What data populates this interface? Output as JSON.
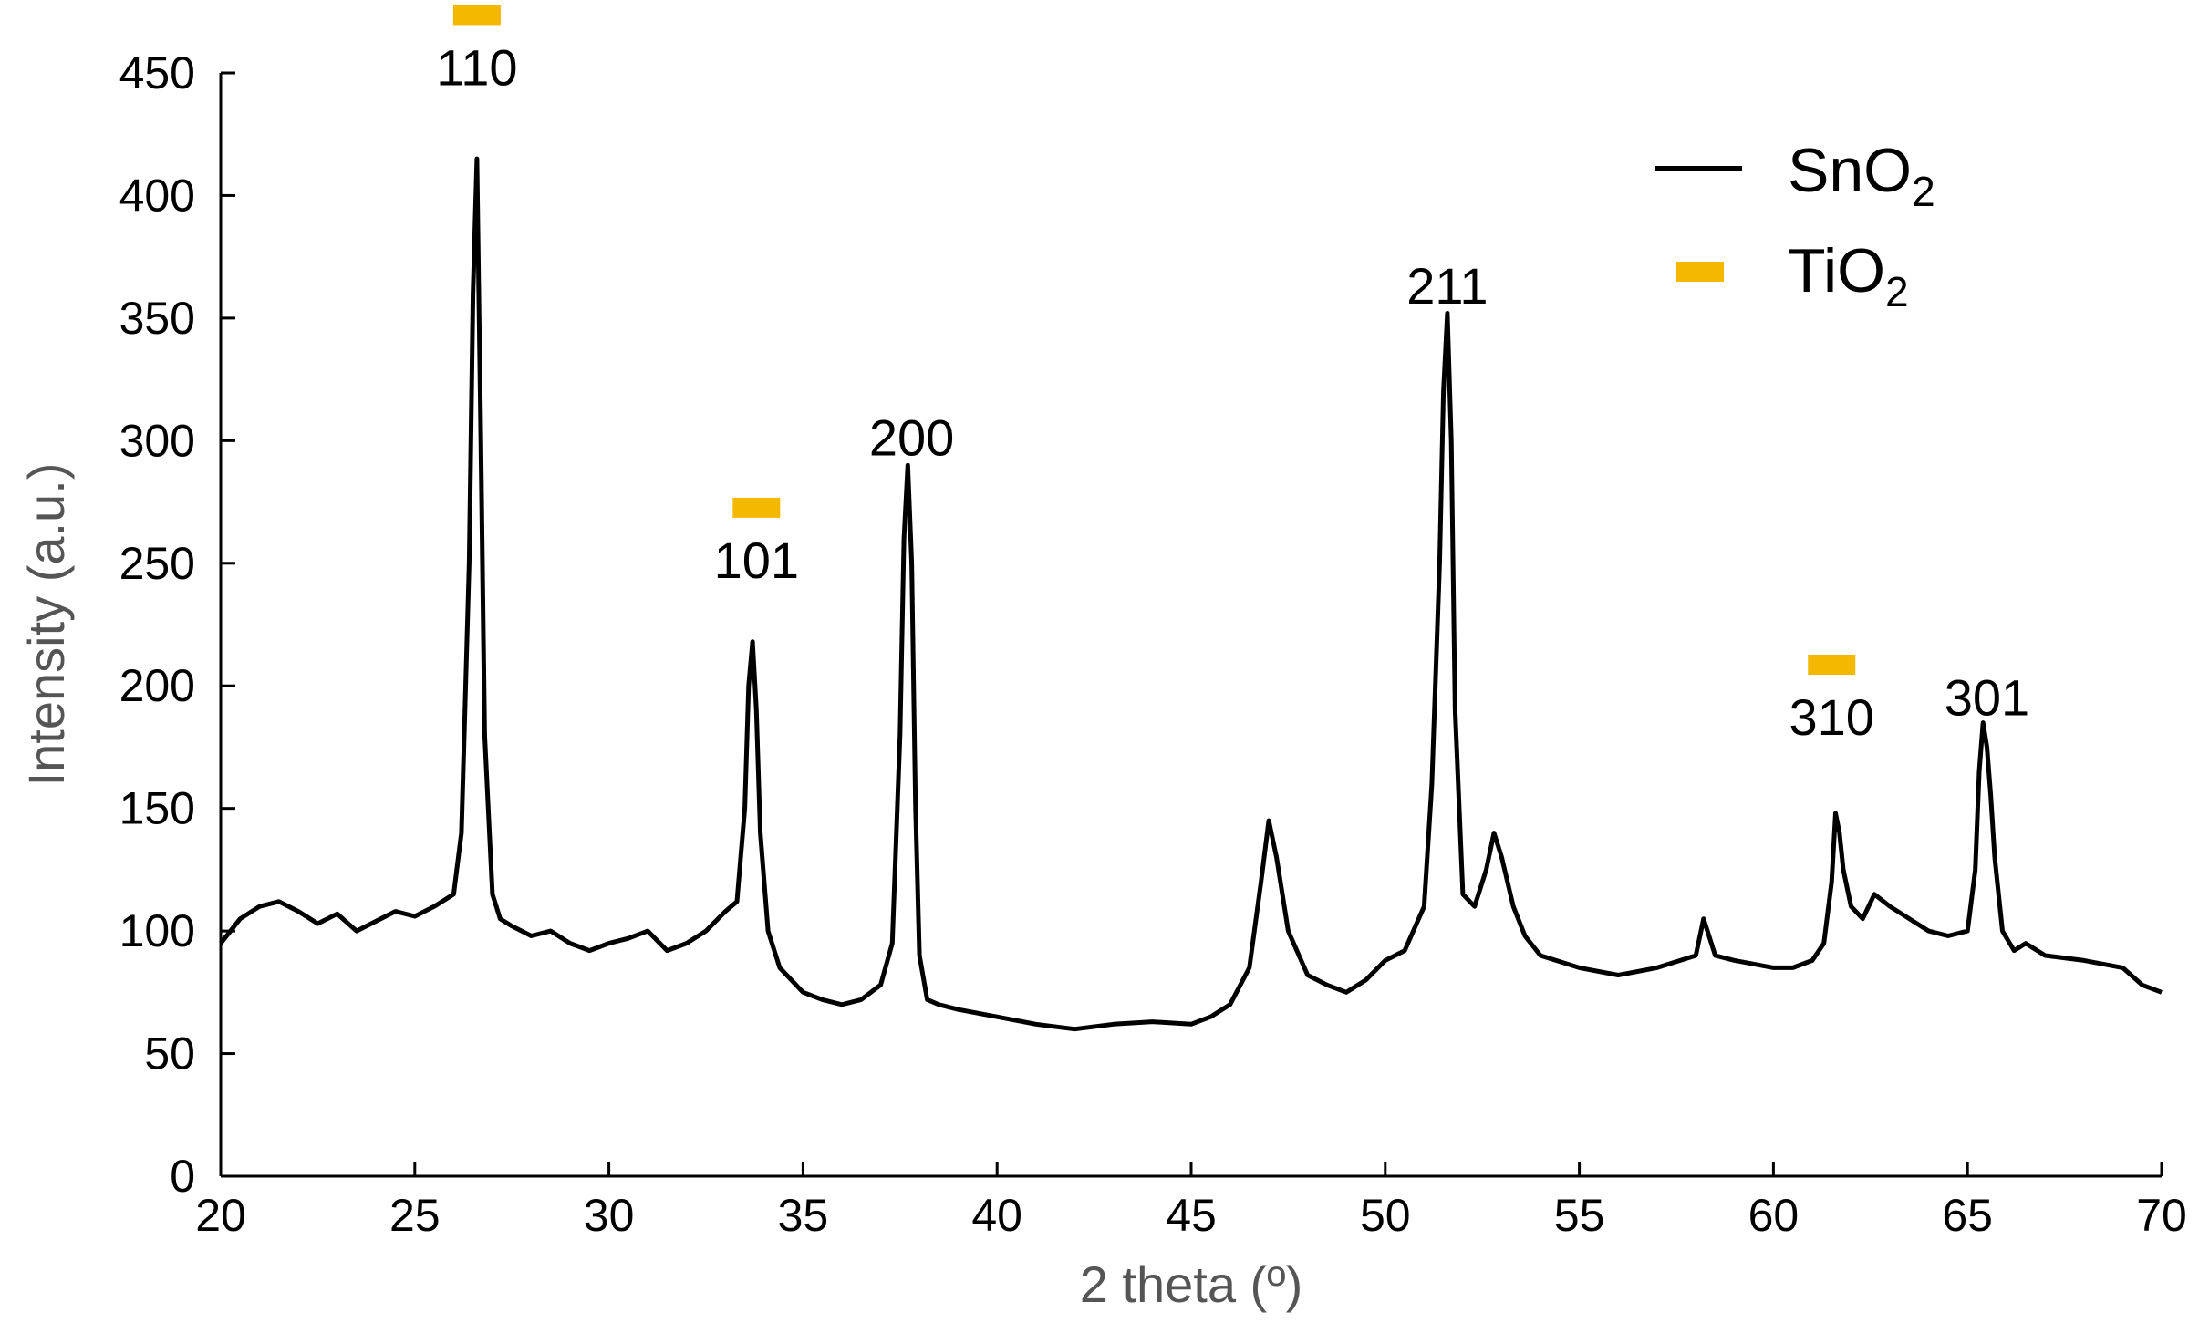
{
  "chart_data": {
    "type": "line",
    "xlabel": "2 theta (º)",
    "ylabel": "Intensity (a.u.)",
    "xlim": [
      20,
      70
    ],
    "ylim": [
      0,
      450
    ],
    "xticks": [
      "20",
      "25",
      "30",
      "35",
      "40",
      "45",
      "50",
      "55",
      "60",
      "65",
      "70"
    ],
    "yticks": [
      "0",
      "50",
      "100",
      "150",
      "200",
      "250",
      "300",
      "350",
      "400",
      "450"
    ],
    "grid": false,
    "legend_position": "top-right",
    "colors": {
      "line": "#000000",
      "marker": "#F5B800"
    },
    "legend": [
      {
        "symbol": "line",
        "base": "SnO",
        "sub": "2"
      },
      {
        "symbol": "bar",
        "base": "TiO",
        "sub": "2"
      }
    ],
    "series": [
      {
        "x": [
          20,
          20.5,
          21,
          21.5,
          22,
          22.5,
          23,
          23.5,
          24,
          24.5,
          25,
          25.5,
          26,
          26.2,
          26.4,
          26.5,
          26.6,
          26.7,
          26.8,
          27,
          27.2,
          27.5,
          28,
          28.5,
          29,
          29.5,
          30,
          30.5,
          31,
          31.5,
          32,
          32.5,
          33,
          33.3,
          33.5,
          33.6,
          33.7,
          33.8,
          33.9,
          34.1,
          34.4,
          35,
          35.5,
          36,
          36.5,
          37,
          37.3,
          37.5,
          37.6,
          37.7,
          37.8,
          37.9,
          38,
          38.2,
          38.5,
          39,
          40,
          41,
          42,
          43,
          44,
          45,
          45.5,
          46,
          46.5,
          46.8,
          47,
          47.2,
          47.5,
          48,
          48.5,
          49,
          49.5,
          50,
          50.5,
          51,
          51.2,
          51.4,
          51.5,
          51.6,
          51.7,
          51.8,
          52,
          52.3,
          52.6,
          52.8,
          53,
          53.3,
          53.6,
          54,
          55,
          56,
          57,
          58,
          58.2,
          58.5,
          59,
          60,
          60.5,
          61,
          61.3,
          61.5,
          61.6,
          61.7,
          61.8,
          62,
          62.3,
          62.6,
          63,
          63.5,
          64,
          64.5,
          65,
          65.2,
          65.3,
          65.4,
          65.5,
          65.6,
          65.7,
          65.9,
          66.2,
          66.5,
          67,
          68,
          69,
          69.5,
          70
        ],
        "y": [
          95,
          105,
          110,
          112,
          108,
          103,
          107,
          100,
          104,
          108,
          106,
          110,
          115,
          140,
          250,
          360,
          415,
          300,
          180,
          115,
          105,
          102,
          98,
          100,
          95,
          92,
          95,
          97,
          100,
          92,
          95,
          100,
          108,
          112,
          150,
          200,
          218,
          190,
          140,
          100,
          85,
          75,
          72,
          70,
          72,
          78,
          95,
          180,
          260,
          290,
          250,
          150,
          90,
          72,
          70,
          68,
          65,
          62,
          60,
          62,
          63,
          62,
          65,
          70,
          85,
          120,
          145,
          130,
          100,
          82,
          78,
          75,
          80,
          88,
          92,
          110,
          160,
          250,
          320,
          352,
          300,
          190,
          115,
          110,
          125,
          140,
          130,
          110,
          98,
          90,
          85,
          82,
          85,
          90,
          105,
          90,
          88,
          85,
          85,
          88,
          95,
          120,
          148,
          140,
          125,
          110,
          105,
          115,
          110,
          105,
          100,
          98,
          100,
          125,
          165,
          185,
          175,
          155,
          130,
          100,
          92,
          95,
          90,
          88,
          85,
          78,
          75
        ]
      }
    ],
    "peak_labels": [
      {
        "x": 26.6,
        "y": 445,
        "text": "110",
        "tio2": true
      },
      {
        "x": 33.8,
        "y": 244,
        "text": "101",
        "tio2": true
      },
      {
        "x": 37.8,
        "y": 294,
        "text": "200",
        "tio2": false
      },
      {
        "x": 51.6,
        "y": 356,
        "text": "211",
        "tio2": false
      },
      {
        "x": 61.5,
        "y": 180,
        "text": "310",
        "tio2": true
      },
      {
        "x": 65.5,
        "y": 188,
        "text": "301",
        "tio2": false
      }
    ]
  }
}
